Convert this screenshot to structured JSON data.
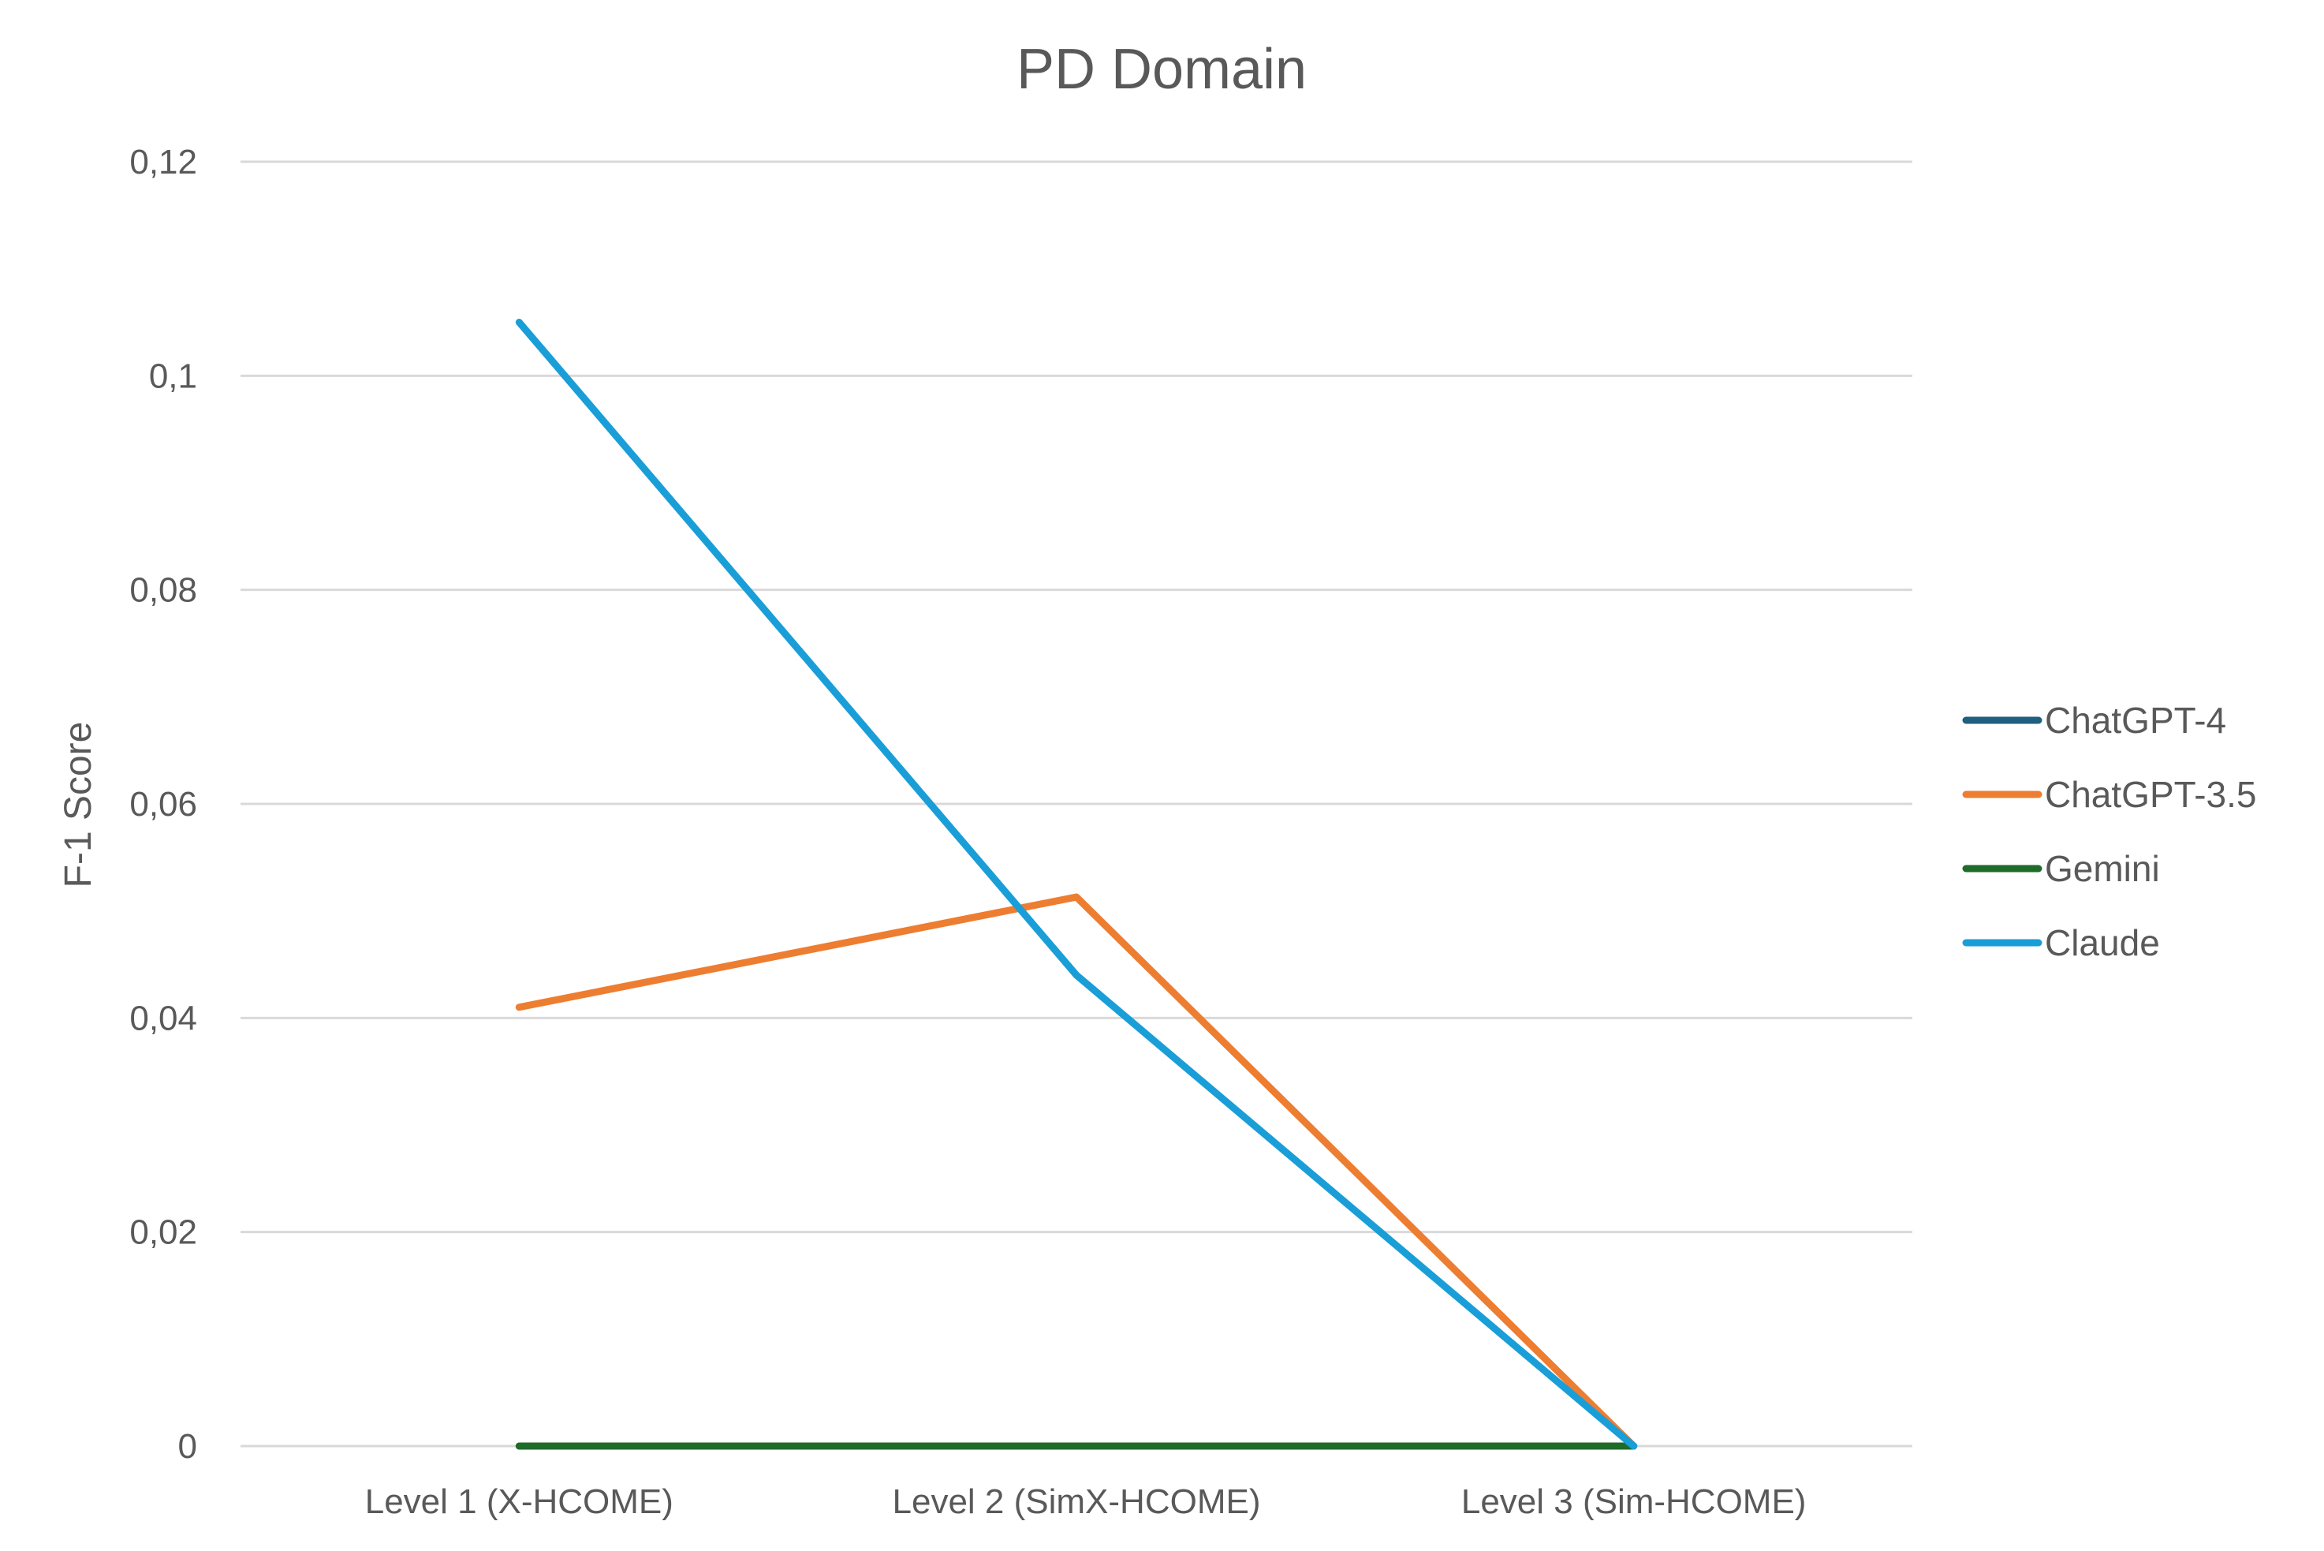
{
  "chart_data": {
    "type": "line",
    "title": "PD Domain",
    "xlabel": "",
    "ylabel": "F-1 Score",
    "categories": [
      "Level 1 (X-HCOME)",
      "Level 2 (SimX-HCOME)",
      "Level 3 (Sim-HCOME)"
    ],
    "yticks": [
      "0",
      "0,02",
      "0,04",
      "0,06",
      "0,08",
      "0,1",
      "0,12"
    ],
    "ylim": [
      0,
      0.12
    ],
    "grid": true,
    "legend_position": "right",
    "series": [
      {
        "name": "ChatGPT-4",
        "color": "#1f5f7f",
        "values": [
          0,
          0,
          0
        ]
      },
      {
        "name": "ChatGPT-3.5",
        "color": "#ed7d31",
        "values": [
          0.041,
          0.0513,
          0
        ]
      },
      {
        "name": "Gemini",
        "color": "#1e6b2a",
        "values": [
          0,
          0,
          0
        ]
      },
      {
        "name": "Claude",
        "color": "#1a9ed8",
        "values": [
          0.105,
          0.044,
          0
        ]
      }
    ]
  }
}
